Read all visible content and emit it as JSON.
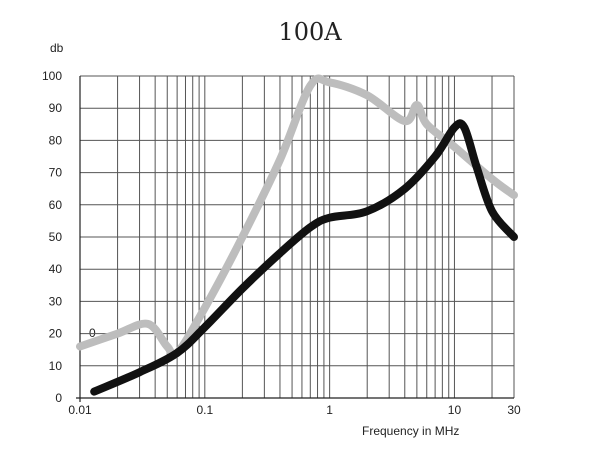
{
  "chart_data": {
    "type": "line",
    "title": "100A",
    "xlabel": "Frequency in MHz",
    "ylabel": "db",
    "x_scale": "log",
    "xlim": [
      0.01,
      30
    ],
    "ylim": [
      0,
      100
    ],
    "grid": true,
    "x_ticks": [
      0.01,
      0.1,
      1,
      10,
      30
    ],
    "x_tick_labels": [
      "0.01",
      "0.1",
      "1",
      "10",
      "30"
    ],
    "y_ticks": [
      0,
      10,
      20,
      30,
      40,
      50,
      60,
      70,
      80,
      90,
      100
    ],
    "y_tick_labels": [
      "0",
      "10",
      "20",
      "30",
      "40",
      "50",
      "60",
      "70",
      "80",
      "90",
      "100"
    ],
    "stray_label": "0",
    "series": [
      {
        "color": "#bdbdbd",
        "x": [
          0.01,
          0.02,
          0.035,
          0.05,
          0.06,
          0.1,
          0.2,
          0.4,
          0.7,
          1,
          2,
          4,
          5,
          6,
          10,
          20,
          30
        ],
        "y": [
          16,
          20,
          23,
          16,
          14,
          28,
          50,
          74,
          97,
          98,
          94,
          86,
          91,
          85,
          78,
          68,
          63
        ]
      },
      {
        "color": "#111111",
        "x": [
          0.013,
          0.03,
          0.06,
          0.1,
          0.2,
          0.4,
          0.7,
          1,
          2,
          4,
          7,
          10,
          12,
          15,
          20,
          30
        ],
        "y": [
          2,
          8,
          14,
          22,
          34,
          45,
          53,
          56,
          58,
          65,
          75,
          84,
          84,
          72,
          58,
          50
        ]
      }
    ]
  }
}
